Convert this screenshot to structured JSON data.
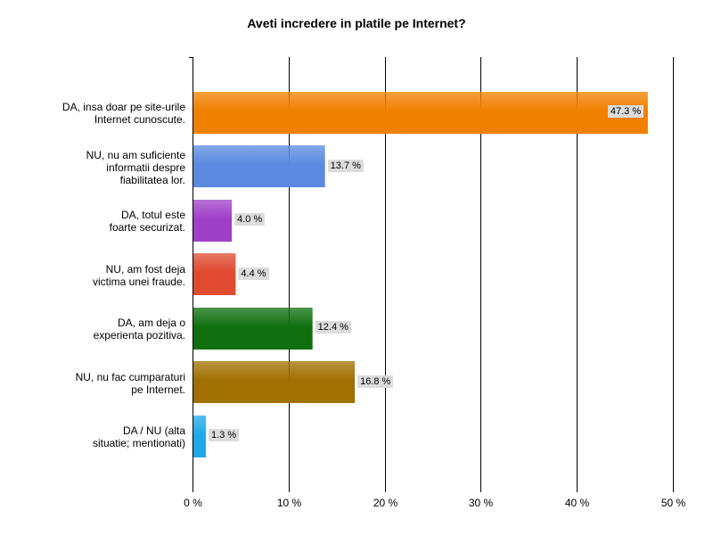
{
  "chart_data": {
    "type": "bar",
    "orientation": "horizontal",
    "title": "Aveti incredere in platile pe Internet?",
    "categories": [
      [
        "DA, insa doar pe site-urile",
        "Internet cunoscute."
      ],
      [
        "NU, nu am suficiente",
        "informatii despre",
        "fiabilitatea lor."
      ],
      [
        "DA, totul este",
        "foarte securizat."
      ],
      [
        "NU, am fost deja",
        "victima unei fraude."
      ],
      [
        "DA, am deja o",
        "experienta pozitiva."
      ],
      [
        "NU, nu fac cumparaturi",
        "pe Internet."
      ],
      [
        "DA / NU (alta",
        "situatie; mentionati)"
      ]
    ],
    "values": [
      47.3,
      13.7,
      4.0,
      4.4,
      12.4,
      16.8,
      1.3
    ],
    "value_labels": [
      "47.3 %",
      "13.7 %",
      "4.0 %",
      "4.4 %",
      "12.4 %",
      "16.8 %",
      "1.3 %"
    ],
    "colors": [
      "#f08000",
      "#5b8ae0",
      "#a040c8",
      "#e04a30",
      "#107010",
      "#a07000",
      "#20a8e8"
    ],
    "xlim": [
      0,
      50
    ],
    "xticks": [
      0,
      10,
      20,
      30,
      40,
      50
    ],
    "xtick_labels": [
      "0 %",
      "10 %",
      "20 %",
      "30 %",
      "40 %",
      "50 %"
    ],
    "grid": true,
    "xlabel": "",
    "ylabel": ""
  }
}
